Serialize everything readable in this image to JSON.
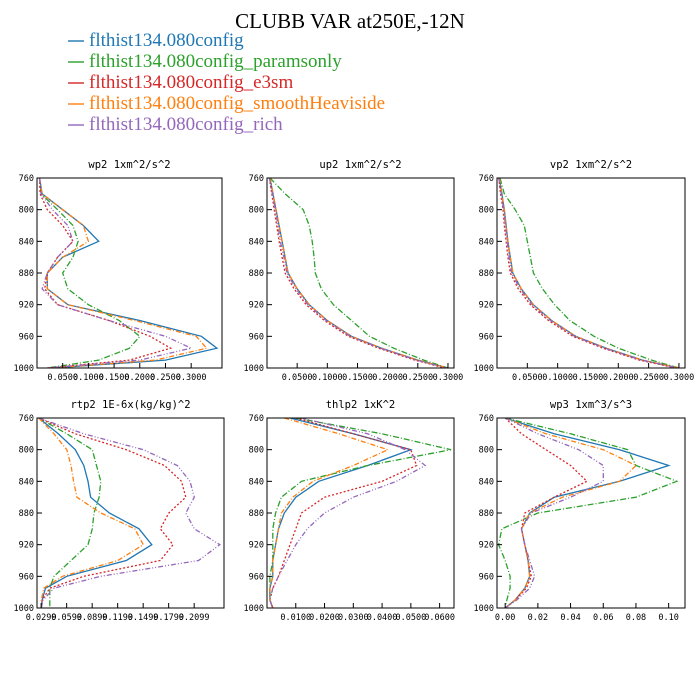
{
  "title": "CLUBB VAR at250E,-12N",
  "legend": [
    {
      "label": "flthist134.080config",
      "color": "#1f77b4",
      "dash": ""
    },
    {
      "label": "flthist134.080config_paramsonly",
      "color": "#2ca02c",
      "dash": "6,2,1,2"
    },
    {
      "label": "flthist134.080config_e3sm",
      "color": "#d62728",
      "dash": "2,2"
    },
    {
      "label": "flthist134.080config_smoothHeaviside",
      "color": "#ff7f0e",
      "dash": "5,2,1,2"
    },
    {
      "label": "flthist134.080config_rich",
      "color": "#9467bd",
      "dash": "5,2,1,2,1,2"
    }
  ],
  "chart_data": [
    {
      "type": "line",
      "title": "wp2   1xm^2/s^2",
      "xlim": [
        0,
        0.36
      ],
      "xticks": [
        0.05,
        0.1,
        0.15,
        0.2,
        0.25,
        0.3
      ],
      "xtick_labels": [
        "0.0500",
        "0.1000",
        "0.1500",
        "0.2000",
        "0.2500",
        "0.3000"
      ],
      "ylim": [
        760,
        1000
      ],
      "yticks": [
        760,
        800,
        840,
        880,
        920,
        960,
        1000
      ],
      "ytick_labels": [
        "760",
        "800",
        "840",
        "880",
        "920",
        "960",
        "1000"
      ],
      "y": [
        760,
        780,
        800,
        820,
        840,
        860,
        880,
        900,
        920,
        940,
        960,
        975,
        990,
        1000
      ],
      "series": [
        {
          "name": "flthist134.080config",
          "values": [
            0.005,
            0.01,
            0.05,
            0.09,
            0.12,
            0.05,
            0.02,
            0.02,
            0.06,
            0.2,
            0.32,
            0.35,
            0.25,
            0.03
          ]
        },
        {
          "name": "flthist134.080config_paramsonly",
          "values": [
            0.005,
            0.008,
            0.04,
            0.07,
            0.08,
            0.07,
            0.05,
            0.06,
            0.1,
            0.16,
            0.2,
            0.18,
            0.12,
            0.02
          ]
        },
        {
          "name": "flthist134.080config_e3sm",
          "values": [
            0.005,
            0.006,
            0.02,
            0.05,
            0.07,
            0.04,
            0.02,
            0.015,
            0.04,
            0.14,
            0.22,
            0.26,
            0.18,
            0.02
          ]
        },
        {
          "name": "flthist134.080config_smoothHeaviside",
          "values": [
            0.005,
            0.01,
            0.05,
            0.09,
            0.1,
            0.05,
            0.02,
            0.02,
            0.06,
            0.19,
            0.31,
            0.33,
            0.23,
            0.03
          ]
        },
        {
          "name": "flthist134.080config_rich",
          "values": [
            0.005,
            0.008,
            0.03,
            0.06,
            0.07,
            0.04,
            0.02,
            0.01,
            0.04,
            0.14,
            0.25,
            0.3,
            0.2,
            0.02
          ]
        }
      ]
    },
    {
      "type": "line",
      "title": "up2   1xm^2/s^2",
      "xlim": [
        0,
        0.31
      ],
      "xticks": [
        0.05,
        0.1,
        0.15,
        0.2,
        0.25,
        0.3
      ],
      "xtick_labels": [
        "0.0500",
        "0.1000",
        "0.1500",
        "0.2000",
        "0.2500",
        "0.3000"
      ],
      "ylim": [
        760,
        1000
      ],
      "yticks": [
        760,
        800,
        840,
        880,
        920,
        960,
        1000
      ],
      "ytick_labels": [
        "760",
        "800",
        "840",
        "880",
        "920",
        "960",
        "1000"
      ],
      "y": [
        760,
        780,
        800,
        820,
        840,
        860,
        880,
        900,
        920,
        940,
        960,
        975,
        990,
        1000
      ],
      "series": [
        {
          "name": "flthist134.080config",
          "values": [
            0.005,
            0.01,
            0.015,
            0.02,
            0.025,
            0.03,
            0.035,
            0.05,
            0.07,
            0.1,
            0.14,
            0.19,
            0.25,
            0.3
          ]
        },
        {
          "name": "flthist134.080config_paramsonly",
          "values": [
            0.005,
            0.03,
            0.06,
            0.07,
            0.075,
            0.078,
            0.08,
            0.09,
            0.11,
            0.14,
            0.17,
            0.21,
            0.26,
            0.3
          ]
        },
        {
          "name": "flthist134.080config_e3sm",
          "values": [
            0.004,
            0.008,
            0.012,
            0.016,
            0.02,
            0.025,
            0.03,
            0.045,
            0.065,
            0.095,
            0.135,
            0.185,
            0.245,
            0.295
          ]
        },
        {
          "name": "flthist134.080config_smoothHeaviside",
          "values": [
            0.005,
            0.01,
            0.015,
            0.02,
            0.025,
            0.03,
            0.035,
            0.05,
            0.07,
            0.1,
            0.14,
            0.19,
            0.25,
            0.3
          ]
        },
        {
          "name": "flthist134.080config_rich",
          "values": [
            0.004,
            0.009,
            0.014,
            0.018,
            0.022,
            0.028,
            0.033,
            0.048,
            0.068,
            0.098,
            0.138,
            0.188,
            0.248,
            0.298
          ]
        }
      ]
    },
    {
      "type": "line",
      "title": "vp2   1xm^2/s^2",
      "xlim": [
        0,
        0.31
      ],
      "xticks": [
        0.05,
        0.1,
        0.15,
        0.2,
        0.25,
        0.3
      ],
      "xtick_labels": [
        "0.0500",
        "0.1000",
        "0.1500",
        "0.2000",
        "0.2500",
        "0.3000"
      ],
      "ylim": [
        760,
        1000
      ],
      "yticks": [
        760,
        800,
        840,
        880,
        920,
        960,
        1000
      ],
      "ytick_labels": [
        "760",
        "800",
        "840",
        "880",
        "920",
        "960",
        "1000"
      ],
      "y": [
        760,
        780,
        800,
        820,
        840,
        860,
        880,
        900,
        920,
        940,
        960,
        975,
        990,
        1000
      ],
      "series": [
        {
          "name": "flthist134.080config",
          "values": [
            0.004,
            0.008,
            0.012,
            0.015,
            0.018,
            0.022,
            0.026,
            0.04,
            0.06,
            0.09,
            0.13,
            0.18,
            0.24,
            0.3
          ]
        },
        {
          "name": "flthist134.080config_paramsonly",
          "values": [
            0.005,
            0.012,
            0.03,
            0.045,
            0.05,
            0.055,
            0.06,
            0.075,
            0.095,
            0.12,
            0.16,
            0.2,
            0.255,
            0.3
          ]
        },
        {
          "name": "flthist134.080config_e3sm",
          "values": [
            0.003,
            0.006,
            0.01,
            0.012,
            0.015,
            0.018,
            0.022,
            0.035,
            0.055,
            0.085,
            0.125,
            0.175,
            0.235,
            0.295
          ]
        },
        {
          "name": "flthist134.080config_smoothHeaviside",
          "values": [
            0.004,
            0.008,
            0.012,
            0.015,
            0.018,
            0.022,
            0.026,
            0.04,
            0.06,
            0.09,
            0.13,
            0.18,
            0.24,
            0.3
          ]
        },
        {
          "name": "flthist134.080config_rich",
          "values": [
            0.003,
            0.007,
            0.011,
            0.014,
            0.017,
            0.02,
            0.024,
            0.038,
            0.058,
            0.088,
            0.128,
            0.178,
            0.238,
            0.298
          ]
        }
      ]
    },
    {
      "type": "line",
      "title": "rtp2   1E-6x(kg/kg)^2",
      "xlim": [
        0.025,
        0.245
      ],
      "xticks": [
        0.0299,
        0.0599,
        0.0899,
        0.1199,
        0.1499,
        0.1799,
        0.2099
      ],
      "xtick_labels": [
        "0.0299",
        "0.0599",
        "0.0899",
        "0.1199",
        "0.1499",
        "0.1799",
        "0.2099"
      ],
      "ylim": [
        760,
        1000
      ],
      "yticks": [
        760,
        800,
        840,
        880,
        920,
        960,
        1000
      ],
      "ytick_labels": [
        "760",
        "800",
        "840",
        "880",
        "920",
        "960",
        "1000"
      ],
      "y": [
        760,
        780,
        800,
        820,
        840,
        860,
        880,
        900,
        920,
        940,
        960,
        975,
        990,
        1000
      ],
      "series": [
        {
          "name": "flthist134.080config",
          "values": [
            0.027,
            0.05,
            0.07,
            0.08,
            0.085,
            0.088,
            0.11,
            0.145,
            0.16,
            0.13,
            0.06,
            0.035,
            0.031,
            0.03
          ]
        },
        {
          "name": "flthist134.080config_paramsonly",
          "values": [
            0.027,
            0.06,
            0.09,
            0.095,
            0.1,
            0.098,
            0.092,
            0.09,
            0.085,
            0.065,
            0.045,
            0.04,
            0.04,
            0.04
          ]
        },
        {
          "name": "flthist134.080config_e3sm",
          "values": [
            0.027,
            0.07,
            0.13,
            0.175,
            0.195,
            0.2,
            0.18,
            0.17,
            0.185,
            0.17,
            0.08,
            0.04,
            0.031,
            0.03
          ]
        },
        {
          "name": "flthist134.080config_smoothHeaviside",
          "values": [
            0.027,
            0.045,
            0.06,
            0.065,
            0.068,
            0.072,
            0.1,
            0.14,
            0.15,
            0.12,
            0.055,
            0.033,
            0.03,
            0.03
          ]
        },
        {
          "name": "flthist134.080config_rich",
          "values": [
            0.027,
            0.08,
            0.15,
            0.19,
            0.205,
            0.21,
            0.2,
            0.21,
            0.24,
            0.215,
            0.1,
            0.045,
            0.032,
            0.03
          ]
        }
      ]
    },
    {
      "type": "line",
      "title": "thlp2   1xK^2",
      "xlim": [
        0,
        0.065
      ],
      "xticks": [
        0.01,
        0.02,
        0.03,
        0.04,
        0.05,
        0.06
      ],
      "xtick_labels": [
        "0.0100",
        "0.0200",
        "0.0300",
        "0.0400",
        "0.0500",
        "0.0600"
      ],
      "ylim": [
        760,
        1000
      ],
      "yticks": [
        760,
        800,
        840,
        880,
        920,
        960,
        1000
      ],
      "ytick_labels": [
        "760",
        "800",
        "840",
        "880",
        "920",
        "960",
        "1000"
      ],
      "y": [
        760,
        780,
        800,
        820,
        840,
        860,
        880,
        900,
        920,
        940,
        960,
        975,
        990,
        1000
      ],
      "series": [
        {
          "name": "flthist134.080config",
          "values": [
            0.008,
            0.03,
            0.05,
            0.035,
            0.018,
            0.01,
            0.006,
            0.004,
            0.003,
            0.002,
            0.002,
            0.001,
            0.001,
            0.002
          ]
        },
        {
          "name": "flthist134.080config_paramsonly",
          "values": [
            0.01,
            0.04,
            0.064,
            0.035,
            0.012,
            0.005,
            0.003,
            0.002,
            0.002,
            0.002,
            0.001,
            0.001,
            0.001,
            0.002
          ]
        },
        {
          "name": "flthist134.080config_e3sm",
          "values": [
            0.01,
            0.03,
            0.05,
            0.052,
            0.04,
            0.02,
            0.012,
            0.01,
            0.008,
            0.006,
            0.004,
            0.002,
            0.001,
            0.002
          ]
        },
        {
          "name": "flthist134.080config_smoothHeaviside",
          "values": [
            0.006,
            0.025,
            0.042,
            0.03,
            0.016,
            0.009,
            0.005,
            0.004,
            0.003,
            0.002,
            0.002,
            0.001,
            0.001,
            0.002
          ]
        },
        {
          "name": "flthist134.080config_rich",
          "values": [
            0.012,
            0.035,
            0.048,
            0.055,
            0.045,
            0.03,
            0.02,
            0.014,
            0.01,
            0.007,
            0.004,
            0.002,
            0.001,
            0.002
          ]
        }
      ]
    },
    {
      "type": "line",
      "title": "wp3   1xm^3/s^3",
      "xlim": [
        -0.005,
        0.11
      ],
      "xticks": [
        0.0,
        0.02,
        0.04,
        0.06,
        0.08,
        0.1
      ],
      "xtick_labels": [
        "0.00",
        "0.02",
        "0.04",
        "0.06",
        "0.08",
        "0.10"
      ],
      "ylim": [
        760,
        1000
      ],
      "yticks": [
        760,
        800,
        840,
        880,
        920,
        960,
        1000
      ],
      "ytick_labels": [
        "760",
        "800",
        "840",
        "880",
        "920",
        "960",
        "1000"
      ],
      "y": [
        760,
        780,
        800,
        820,
        840,
        860,
        880,
        900,
        920,
        940,
        960,
        975,
        990,
        1000
      ],
      "series": [
        {
          "name": "flthist134.080config",
          "values": [
            0.0,
            0.03,
            0.07,
            0.1,
            0.07,
            0.03,
            0.015,
            0.01,
            0.012,
            0.014,
            0.015,
            0.012,
            0.006,
            0.0
          ]
        },
        {
          "name": "flthist134.080config_paramsonly",
          "values": [
            0.0,
            0.04,
            0.075,
            0.08,
            0.105,
            0.08,
            0.02,
            -0.002,
            -0.004,
            0.0,
            0.003,
            0.003,
            0.001,
            0.0
          ]
        },
        {
          "name": "flthist134.080config_e3sm",
          "values": [
            0.0,
            0.01,
            0.025,
            0.04,
            0.05,
            0.03,
            0.012,
            0.01,
            0.012,
            0.014,
            0.016,
            0.013,
            0.006,
            0.0
          ]
        },
        {
          "name": "flthist134.080config_smoothHeaviside",
          "values": [
            0.0,
            0.025,
            0.06,
            0.08,
            0.07,
            0.035,
            0.015,
            0.01,
            0.012,
            0.014,
            0.015,
            0.012,
            0.006,
            0.0
          ]
        },
        {
          "name": "flthist134.080config_rich",
          "values": [
            0.0,
            0.02,
            0.045,
            0.06,
            0.06,
            0.04,
            0.016,
            0.01,
            0.012,
            0.015,
            0.018,
            0.015,
            0.007,
            0.0
          ]
        }
      ]
    }
  ]
}
